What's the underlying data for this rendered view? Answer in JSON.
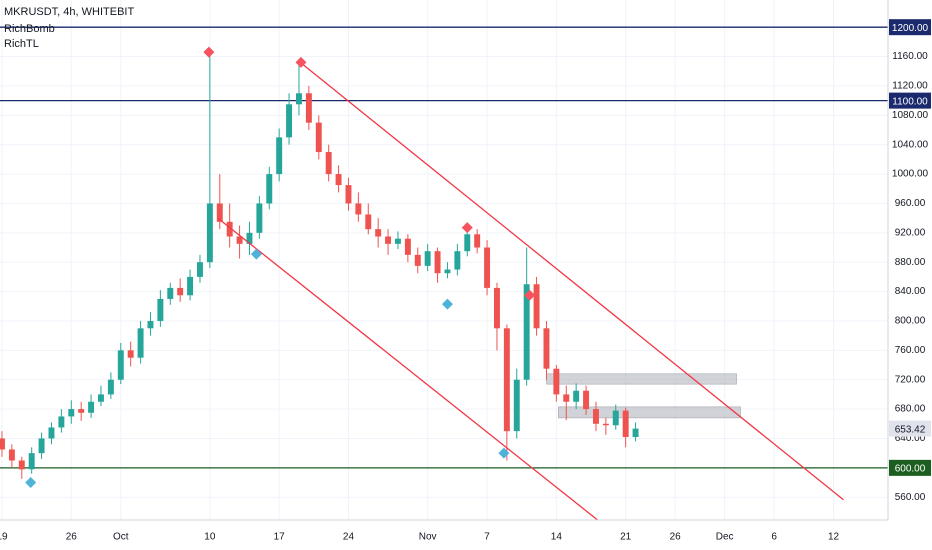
{
  "chart_data": {
    "type": "candlestick",
    "title": "MKRUSDT, 4h, WHITEBIT",
    "indicators": [
      "RichBomb",
      "RichTL"
    ],
    "up_color": "#26a69a",
    "down_color": "#ef5350",
    "grid": true,
    "xlim": [
      -0.2,
      89.5
    ],
    "ylim": [
      529,
      1237
    ],
    "xticks": [
      {
        "value": 0,
        "label": "19"
      },
      {
        "value": 7,
        "label": "26"
      },
      {
        "value": 12,
        "label": "Oct"
      },
      {
        "value": 21,
        "label": "10"
      },
      {
        "value": 28,
        "label": "17"
      },
      {
        "value": 35,
        "label": "24"
      },
      {
        "value": 43,
        "label": "Nov"
      },
      {
        "value": 49,
        "label": "7"
      },
      {
        "value": 56,
        "label": "14"
      },
      {
        "value": 63,
        "label": "21"
      },
      {
        "value": 68,
        "label": "26"
      },
      {
        "value": 73,
        "label": "Dec"
      },
      {
        "value": 78,
        "label": "6"
      },
      {
        "value": 84,
        "label": "12"
      }
    ],
    "yticks": [
      {
        "value": 560,
        "label": "560.00"
      },
      {
        "value": 600,
        "label": "600.00"
      },
      {
        "value": 640,
        "label": "640.00"
      },
      {
        "value": 680,
        "label": "680.00"
      },
      {
        "value": 720,
        "label": "720.00"
      },
      {
        "value": 760,
        "label": "760.00"
      },
      {
        "value": 800,
        "label": "800.00"
      },
      {
        "value": 840,
        "label": "840.00"
      },
      {
        "value": 880,
        "label": "880.00"
      },
      {
        "value": 920,
        "label": "920.00"
      },
      {
        "value": 960,
        "label": "960.00"
      },
      {
        "value": 1000,
        "label": "1000.00"
      },
      {
        "value": 1040,
        "label": "1040.00"
      },
      {
        "value": 1080,
        "label": "1080.00"
      },
      {
        "value": 1120,
        "label": "1120.00"
      },
      {
        "value": 1160,
        "label": "1160.00"
      }
    ],
    "x": [
      0,
      1,
      2,
      3,
      4,
      5,
      6,
      7,
      8,
      9,
      10,
      11,
      12,
      13,
      14,
      15,
      16,
      17,
      18,
      19,
      20,
      21,
      22,
      23,
      24,
      25,
      26,
      27,
      28,
      29,
      30,
      31,
      32,
      33,
      34,
      35,
      36,
      37,
      38,
      39,
      40,
      41,
      42,
      43,
      44,
      45,
      46,
      47,
      48,
      49,
      50,
      51,
      52,
      53,
      54,
      55,
      56,
      57,
      58,
      59,
      60,
      61,
      62,
      63,
      64
    ],
    "open": [
      640,
      625,
      610,
      598,
      620,
      640,
      655,
      670,
      680,
      675,
      690,
      700,
      720,
      760,
      750,
      790,
      800,
      830,
      845,
      835,
      860,
      880,
      960,
      935,
      915,
      905,
      920,
      960,
      1000,
      1050,
      1095,
      1110,
      1070,
      1030,
      1000,
      985,
      960,
      945,
      925,
      915,
      905,
      912,
      890,
      875,
      895,
      865,
      870,
      895,
      918,
      900,
      845,
      790,
      650,
      720,
      850,
      790,
      735,
      700,
      690,
      705,
      680,
      660,
      658,
      678,
      642
    ],
    "high": [
      650,
      632,
      615,
      628,
      648,
      662,
      680,
      692,
      690,
      700,
      712,
      730,
      770,
      772,
      800,
      812,
      842,
      852,
      858,
      870,
      890,
      1166,
      1000,
      960,
      930,
      935,
      970,
      1010,
      1062,
      1110,
      1152,
      1120,
      1080,
      1040,
      1012,
      995,
      975,
      960,
      940,
      925,
      922,
      918,
      900,
      905,
      900,
      880,
      905,
      924,
      925,
      910,
      852,
      795,
      735,
      900,
      860,
      800,
      740,
      712,
      715,
      712,
      690,
      668,
      686,
      682,
      662
    ],
    "low": [
      615,
      600,
      585,
      592,
      612,
      632,
      648,
      660,
      664,
      668,
      684,
      694,
      714,
      738,
      742,
      780,
      792,
      822,
      826,
      828,
      852,
      872,
      925,
      900,
      885,
      890,
      912,
      952,
      990,
      1040,
      1080,
      1060,
      1020,
      990,
      975,
      950,
      935,
      918,
      900,
      890,
      898,
      880,
      865,
      868,
      852,
      858,
      862,
      888,
      892,
      835,
      760,
      610,
      640,
      712,
      780,
      720,
      690,
      665,
      680,
      672,
      650,
      645,
      652,
      628,
      636
    ],
    "close": [
      625,
      610,
      598,
      620,
      640,
      655,
      670,
      680,
      675,
      690,
      700,
      720,
      760,
      750,
      790,
      800,
      830,
      845,
      835,
      860,
      880,
      960,
      935,
      915,
      905,
      920,
      960,
      1000,
      1050,
      1095,
      1110,
      1070,
      1030,
      1000,
      985,
      960,
      945,
      925,
      915,
      905,
      912,
      890,
      875,
      895,
      865,
      870,
      895,
      918,
      900,
      845,
      790,
      650,
      720,
      850,
      790,
      735,
      700,
      690,
      705,
      680,
      660,
      658,
      678,
      642,
      653.42
    ],
    "last": {
      "value": 653.42,
      "color": "#e0e3eb"
    },
    "levels": [
      {
        "value": 1200,
        "label": "1200.00",
        "color": "#1a2a6c"
      },
      {
        "value": 1100,
        "label": "1100.00",
        "color": "#1a2a6c"
      },
      {
        "value": 600,
        "label": "600.00",
        "color": "#1b5e20"
      }
    ],
    "trendlines": [
      {
        "x": [
          30.1,
          85.0
        ],
        "y": [
          1152.4,
          556.5
        ],
        "color": "#f23645"
      },
      {
        "x": [
          21.8,
          60.4
        ],
        "y": [
          940,
          526.5
        ],
        "color": "#f23645"
      }
    ],
    "zones": [
      {
        "x": [
          55.0,
          74.2
        ],
        "y": [
          714,
          728
        ],
        "color": "#b2b5be"
      },
      {
        "x": [
          56.2,
          74.6
        ],
        "y": [
          668,
          683
        ],
        "color": "#b2b5be"
      }
    ],
    "markers": [
      {
        "x": 20.9,
        "y": 1166,
        "color": "#f7525f"
      },
      {
        "x": 30.2,
        "y": 1152,
        "color": "#f7525f"
      },
      {
        "x": 47.0,
        "y": 927,
        "color": "#f7525f"
      },
      {
        "x": 53.3,
        "y": 835,
        "color": "#f7525f"
      },
      {
        "x": 2.9,
        "y": 580,
        "color": "#4fb3d9"
      },
      {
        "x": 25.7,
        "y": 891,
        "color": "#4fb3d9"
      },
      {
        "x": 45.0,
        "y": 823,
        "color": "#4fb3d9"
      },
      {
        "x": 50.7,
        "y": 620,
        "color": "#4fb3d9"
      }
    ]
  }
}
